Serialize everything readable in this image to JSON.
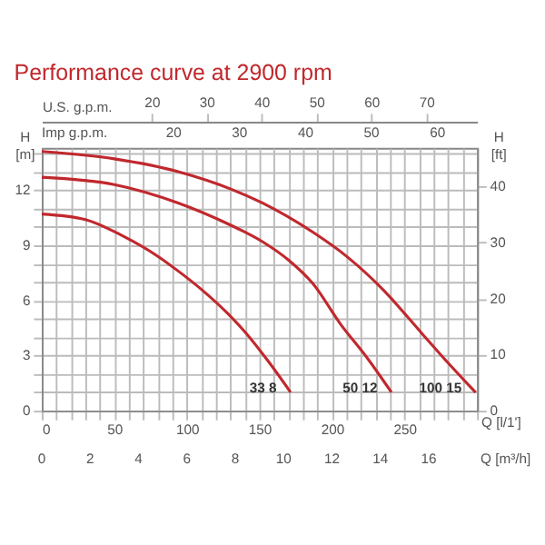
{
  "chart_data": {
    "type": "line",
    "title": "Performance curve at 2900 rpm",
    "xlabel": "Q [l/1']",
    "ylabel": "H [m]",
    "y2label": "H [ft]",
    "x2label": "U.S. g.p.m.",
    "xlim": [
      0,
      300
    ],
    "ylim": [
      0,
      14.3
    ],
    "y2lim": [
      0,
      46.9
    ],
    "x2lim": [
      0,
      79.26
    ],
    "annotations": [
      "Imp g.p.m.",
      "20",
      "30",
      "40",
      "50",
      "60",
      "0",
      "2",
      "4",
      "6",
      "8",
      "10",
      "12",
      "14",
      "16",
      "Q [m³/h]"
    ],
    "xticks": [
      0,
      {
        "value": 10,
        "label": null
      },
      {
        "value": 20,
        "label": null
      },
      {
        "value": 30,
        "label": null
      },
      {
        "value": 40,
        "label": null
      },
      50,
      {
        "value": 60,
        "label": null
      },
      {
        "value": 70,
        "label": null
      },
      {
        "value": 80,
        "label": null
      },
      {
        "value": 90,
        "label": null
      },
      100,
      {
        "value": 110,
        "label": null
      },
      {
        "value": 120,
        "label": null
      },
      {
        "value": 130,
        "label": null
      },
      {
        "value": 140,
        "label": null
      },
      150,
      {
        "value": 160,
        "label": null
      },
      {
        "value": 170,
        "label": null
      },
      {
        "value": 180,
        "label": null
      },
      {
        "value": 190,
        "label": null
      },
      200,
      {
        "value": 210,
        "label": null
      },
      {
        "value": 220,
        "label": null
      },
      {
        "value": 230,
        "label": null
      },
      {
        "value": 240,
        "label": null
      },
      250,
      {
        "value": 260,
        "label": null
      },
      {
        "value": 270,
        "label": null
      },
      {
        "value": 280,
        "label": null
      },
      {
        "value": 290,
        "label": null
      },
      {
        "value": 300,
        "label": null
      }
    ],
    "yticks": [
      0,
      {
        "value": 1,
        "label": null
      },
      {
        "value": 2,
        "label": null
      },
      3,
      {
        "value": 4,
        "label": null
      },
      {
        "value": 5,
        "label": null
      },
      6,
      {
        "value": 7,
        "label": null
      },
      {
        "value": 8,
        "label": null
      },
      9,
      {
        "value": 10,
        "label": null
      },
      {
        "value": 11,
        "label": null
      },
      12,
      {
        "value": 13,
        "label": null
      },
      {
        "value": 14,
        "label": null
      }
    ],
    "y2ticks": [
      0,
      10,
      20,
      30,
      40
    ],
    "x2ticks": [
      20,
      30,
      40,
      50,
      60,
      70
    ],
    "grid": true,
    "legend": false,
    "marker": "none",
    "line_style": "solid",
    "series": [
      {
        "name": "33 8",
        "color": "#c0282d",
        "x": [
          0,
          30,
          56,
          80,
          94,
          110,
          128,
          141,
          156,
          171.5
        ],
        "values": [
          10.7,
          10.4,
          9.5,
          8.4,
          7.6,
          6.6,
          5.3,
          4.2,
          2.7,
          1.0
        ]
      },
      {
        "name": "50 12",
        "color": "#c0282d",
        "x": [
          0,
          50,
          94,
          130,
          152,
          170,
          187,
          206,
          224,
          241
        ],
        "values": [
          12.7,
          12.3,
          11.3,
          10.1,
          9.2,
          8.2,
          6.9,
          4.7,
          2.9,
          1.0
        ]
      },
      {
        "name": "100 15",
        "color": "#c0282d",
        "x": [
          0,
          50,
          94,
          152,
          187,
          210,
          235,
          262,
          280,
          299
        ],
        "values": [
          14.1,
          13.7,
          13.0,
          11.3,
          9.7,
          8.4,
          6.6,
          4.2,
          2.6,
          1.0
        ]
      }
    ]
  }
}
